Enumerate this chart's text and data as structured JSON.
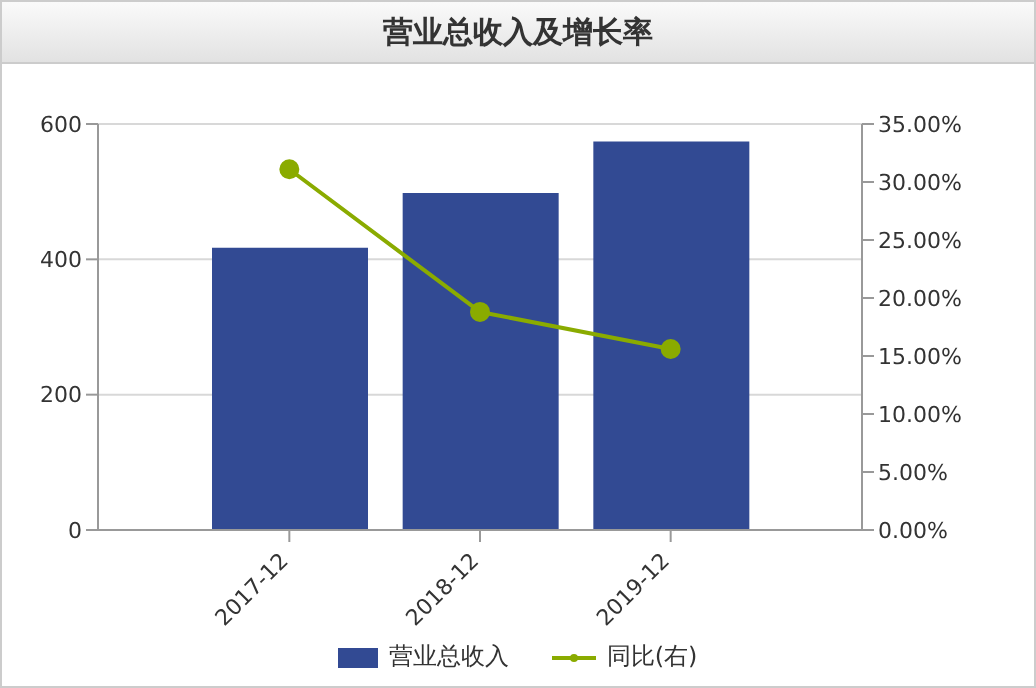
{
  "chart_data": {
    "type": "bar",
    "title": "营业总收入及增长率",
    "categories": [
      "2017-12",
      "2018-12",
      "2019-12"
    ],
    "series": [
      {
        "name": "营业总收入",
        "color": "#324a93",
        "values": [
          417,
          498,
          574
        ]
      },
      {
        "name": "同比(右)",
        "type": "line",
        "axis": "y2",
        "color": "#8aab00",
        "values": [
          31.1,
          18.8,
          15.6
        ]
      }
    ],
    "ylim": [
      0,
      600
    ],
    "yticks": [
      0,
      200,
      400,
      600
    ],
    "y2lim": [
      0,
      35
    ],
    "y2ticks": [
      {
        "value": 0,
        "label": "0.00%"
      },
      {
        "value": 5,
        "label": "5.00%"
      },
      {
        "value": 10,
        "label": "10.00%"
      },
      {
        "value": 15,
        "label": "15.00%"
      },
      {
        "value": 20,
        "label": "20.00%"
      },
      {
        "value": 25,
        "label": "25.00%"
      },
      {
        "value": 30,
        "label": "30.00%"
      },
      {
        "value": 35,
        "label": "35.00%"
      }
    ],
    "grid": "y",
    "legend": "bottom",
    "marker": "circle",
    "line_style": "solid"
  }
}
